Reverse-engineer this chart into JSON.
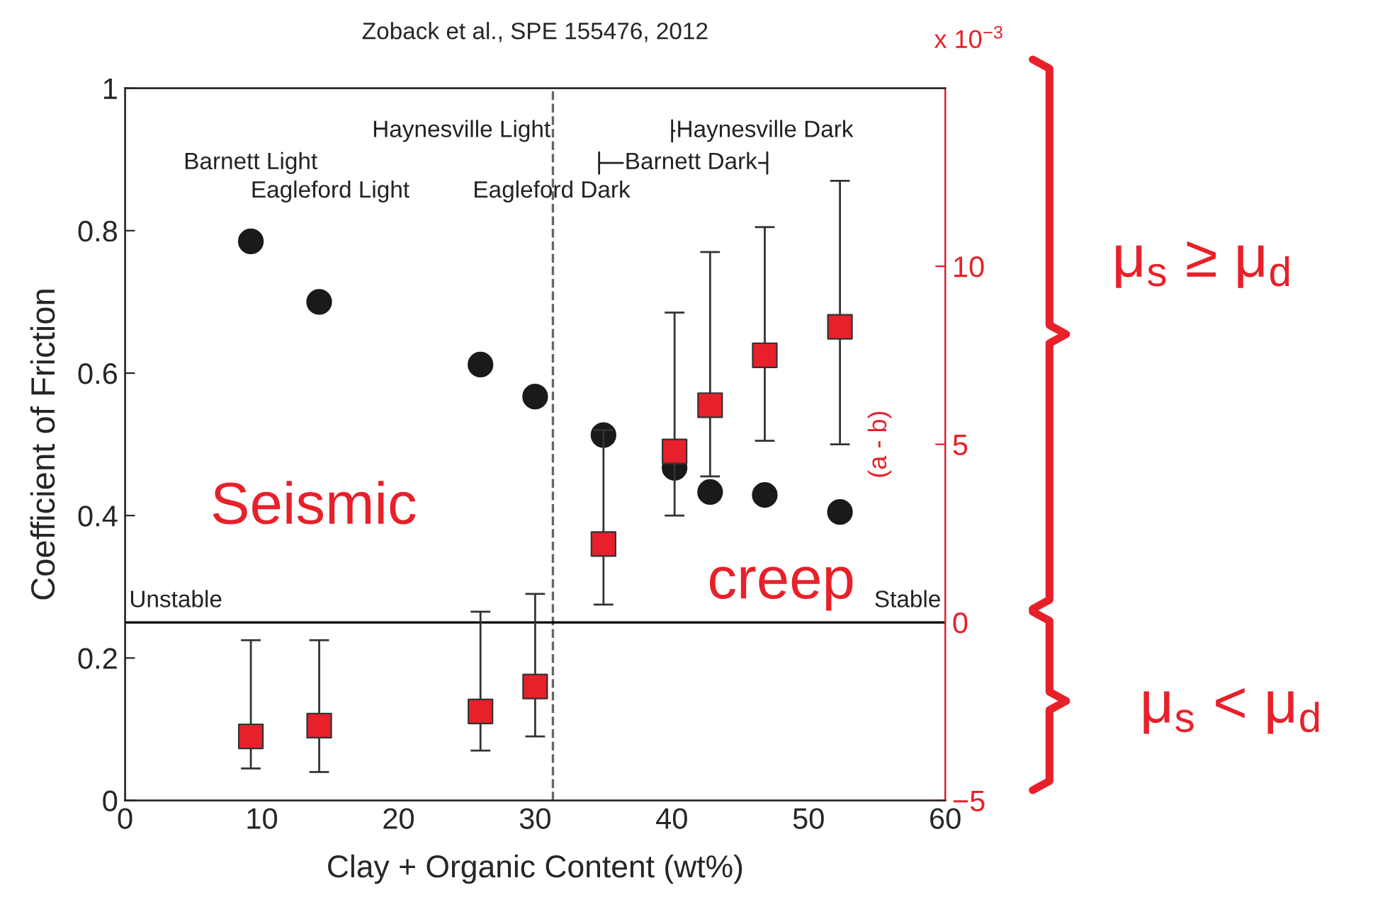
{
  "chart_data": {
    "type": "scatter",
    "title": "Zoback et al., SPE 155476, 2012",
    "xlabel": "Clay + Organic Content (wt%)",
    "ylabel": "Coefficient of Friction",
    "y2label": "(a - b)",
    "x": [
      9.2,
      14.2,
      26,
      30,
      35,
      40.2,
      42.8,
      46.8,
      52.3
    ],
    "series": [
      {
        "color": "#1a1a1a",
        "marker": "circle",
        "values": [
          0.785,
          0.7,
          0.612,
          0.567,
          0.513,
          0.467,
          0.433,
          0.429,
          0.405
        ]
      },
      {
        "color": "#e8202a",
        "marker": "square",
        "axis": "y2",
        "values": [
          -3.2,
          -2.9,
          -2.5,
          -1.8,
          2.2,
          4.8,
          6.1,
          7.5,
          8.3
        ],
        "errors": [
          [
            -4.1,
            -0.5
          ],
          [
            -4.2,
            -0.5
          ],
          [
            -3.6,
            0.3
          ],
          [
            -3.2,
            0.8
          ],
          [
            0.5,
            5.4
          ],
          [
            3.0,
            8.7
          ],
          [
            4.1,
            10.4
          ],
          [
            5.1,
            11.1
          ],
          [
            5.0,
            12.4
          ]
        ]
      }
    ],
    "xlim": [
      0,
      60
    ],
    "xticks": [
      0,
      10,
      20,
      30,
      40,
      50,
      60
    ],
    "ylim": [
      0,
      1
    ],
    "yticks": [
      0,
      0.2,
      0.4,
      0.6,
      0.8,
      1
    ],
    "y2lim": [
      -5,
      15
    ],
    "y2ticks": [
      {
        "value": -5,
        "label": "−5"
      },
      0,
      5,
      10
    ],
    "ref_lines": [
      {
        "axis": "x",
        "value": 31.3,
        "line_style": "dashed",
        "color": "#666666"
      },
      {
        "axis": "y2",
        "value": 0,
        "color": "#000000"
      }
    ],
    "annotations": [
      "Barnett Light",
      "Eagleford Light",
      "Haynesville Light",
      "Eagleford Dark",
      "Barnett Dark",
      "Haynesville Dark",
      "Seismic",
      "creep",
      "Unstable",
      "Stable",
      "x 10$^{−3}$",
      "μ$_{s}$ ≥ μ$_{d}$",
      "μ$_{s}$ < μ$_{d}$"
    ],
    "grid": false
  }
}
